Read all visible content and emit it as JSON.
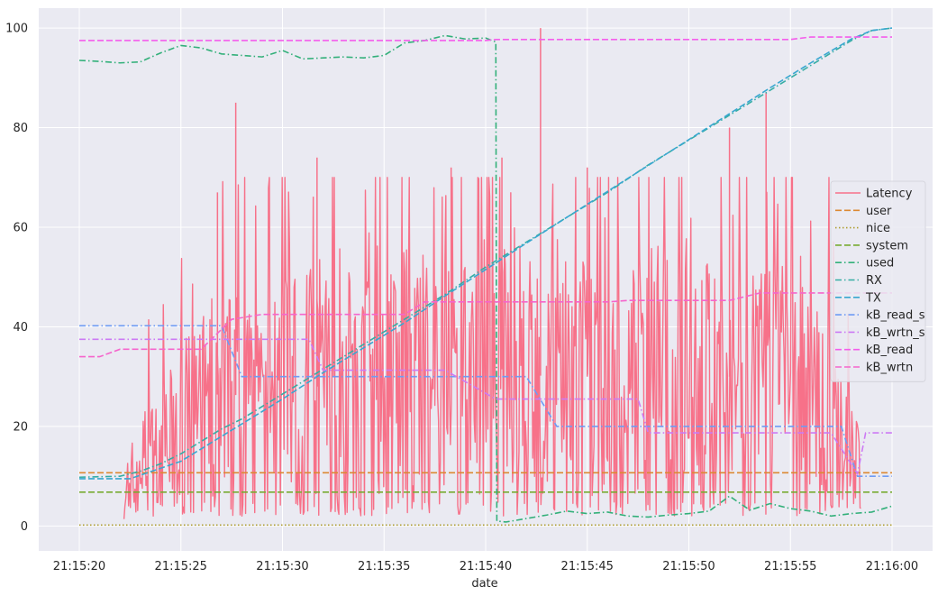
{
  "chart_data": {
    "type": "line",
    "title": "",
    "xlabel": "date",
    "ylabel": "",
    "x_range": [
      "21:15:20",
      "21:16:00"
    ],
    "ylim": [
      -5,
      104
    ],
    "grid": true,
    "legend_position": "right",
    "x_tick_labels": [
      "21:15:20",
      "21:15:25",
      "21:15:30",
      "21:15:35",
      "21:15:40",
      "21:15:45",
      "21:15:50",
      "21:15:55",
      "21:16:00"
    ],
    "y_tick_labels": [
      "0",
      "20",
      "40",
      "60",
      "80",
      "100"
    ],
    "series": [
      {
        "name": "Latency",
        "color": "#f77189",
        "dash": "solid",
        "note_style": "dense noisy bars",
        "points": [
          [
            "21:15:22.2",
            7
          ],
          [
            "21:15:23",
            13
          ],
          [
            "21:15:24",
            15
          ],
          [
            "21:15:25",
            20
          ],
          [
            "21:15:26",
            24
          ],
          [
            "21:15:27",
            27
          ],
          [
            "21:15:28",
            26
          ],
          [
            "21:15:30",
            28
          ],
          [
            "21:15:32",
            28
          ],
          [
            "21:15:35",
            28
          ],
          [
            "21:15:38",
            30
          ],
          [
            "21:15:40",
            32
          ],
          [
            "21:15:43",
            30
          ],
          [
            "21:15:46",
            30
          ],
          [
            "21:15:50",
            30
          ],
          [
            "21:15:54",
            30
          ],
          [
            "21:15:57",
            24
          ],
          [
            "21:15:58.5",
            10
          ]
        ],
        "peaks": [
          [
            "21:15:26.8",
            67
          ],
          [
            "21:15:27.7",
            85
          ],
          [
            "21:15:31.7",
            74
          ],
          [
            "21:15:38.3",
            72
          ],
          [
            "21:15:40.8",
            74
          ],
          [
            "21:15:42.7",
            100
          ],
          [
            "21:15:45",
            72
          ],
          [
            "21:15:52",
            80
          ],
          [
            "21:15:53.8",
            87
          ]
        ]
      },
      {
        "name": "user",
        "color": "#dc8932",
        "dash": "dashed",
        "points": [
          [
            "21:15:20",
            10.7
          ],
          [
            "21:16:00",
            10.7
          ]
        ]
      },
      {
        "name": "nice",
        "color": "#ae9d31",
        "dash": "dotted",
        "points": [
          [
            "21:15:20",
            0.2
          ],
          [
            "21:16:00",
            0.2
          ]
        ]
      },
      {
        "name": "system",
        "color": "#77ab31",
        "dash": "dashed",
        "points": [
          [
            "21:15:20",
            6.8
          ],
          [
            "21:16:00",
            6.8
          ]
        ]
      },
      {
        "name": "used",
        "color": "#33b07a",
        "dash": "dashdot",
        "points": [
          [
            "21:15:20",
            93.5
          ],
          [
            "21:15:21",
            93.3
          ],
          [
            "21:15:22",
            93
          ],
          [
            "21:15:23",
            93.2
          ],
          [
            "21:15:24",
            95
          ],
          [
            "21:15:25",
            96.5
          ],
          [
            "21:15:26",
            96
          ],
          [
            "21:15:27",
            94.8
          ],
          [
            "21:15:28",
            94.5
          ],
          [
            "21:15:29",
            94.2
          ],
          [
            "21:15:30",
            95.5
          ],
          [
            "21:15:31",
            93.8
          ],
          [
            "21:15:32",
            94
          ],
          [
            "21:15:33",
            94.2
          ],
          [
            "21:15:34",
            94
          ],
          [
            "21:15:35",
            94.5
          ],
          [
            "21:15:36",
            97
          ],
          [
            "21:15:37",
            97.5
          ],
          [
            "21:15:38",
            98.5
          ],
          [
            "21:15:39",
            97.8
          ],
          [
            "21:15:40",
            98
          ],
          [
            "21:15:40.5",
            97.2
          ],
          [
            "21:15:40.55",
            1
          ],
          [
            "21:15:41",
            0.8
          ],
          [
            "21:15:42",
            1.5
          ],
          [
            "21:15:43",
            2.2
          ],
          [
            "21:15:44",
            3
          ],
          [
            "21:15:45",
            2.5
          ],
          [
            "21:15:46",
            2.8
          ],
          [
            "21:15:47",
            2
          ],
          [
            "21:15:48",
            1.8
          ],
          [
            "21:15:49",
            2.2
          ],
          [
            "21:15:50",
            2.5
          ],
          [
            "21:15:51",
            3
          ],
          [
            "21:15:52",
            6
          ],
          [
            "21:15:53",
            3.2
          ],
          [
            "21:15:54",
            4.5
          ],
          [
            "21:15:55",
            3.5
          ],
          [
            "21:15:56",
            3
          ],
          [
            "21:15:57",
            2
          ],
          [
            "21:15:58",
            2.5
          ],
          [
            "21:15:59",
            2.8
          ],
          [
            "21:16:00",
            4
          ]
        ]
      },
      {
        "name": "RX",
        "color": "#36ada4",
        "dash": "dashdot",
        "points": [
          [
            "21:15:20",
            9.8
          ],
          [
            "21:15:22",
            10
          ],
          [
            "21:15:23",
            11
          ],
          [
            "21:15:24",
            12.5
          ],
          [
            "21:15:25",
            14.5
          ],
          [
            "21:15:26",
            17
          ],
          [
            "21:15:27",
            19.5
          ],
          [
            "21:15:28",
            21.5
          ],
          [
            "21:15:30",
            26.5
          ],
          [
            "21:15:32",
            31.5
          ],
          [
            "21:15:34",
            36.5
          ],
          [
            "21:15:36",
            41.5
          ],
          [
            "21:15:38",
            46.5
          ],
          [
            "21:15:40",
            52
          ],
          [
            "21:15:42",
            57
          ],
          [
            "21:15:44",
            62
          ],
          [
            "21:15:46",
            67
          ],
          [
            "21:15:48",
            72.5
          ],
          [
            "21:15:50",
            77.5
          ],
          [
            "21:15:52",
            82.5
          ],
          [
            "21:15:54",
            87.5
          ],
          [
            "21:15:56",
            92.5
          ],
          [
            "21:15:58",
            97.5
          ],
          [
            "21:15:59",
            99.5
          ],
          [
            "21:16:00",
            100
          ]
        ]
      },
      {
        "name": "TX",
        "color": "#39a7d0",
        "dash": "dashed",
        "points": [
          [
            "21:15:20",
            9.5
          ],
          [
            "21:15:22.5",
            9.5
          ],
          [
            "21:15:23",
            10.2
          ],
          [
            "21:15:25",
            13
          ],
          [
            "21:15:27",
            18
          ],
          [
            "21:15:28",
            20.5
          ],
          [
            "21:15:30",
            25.5
          ],
          [
            "21:15:32",
            30.8
          ],
          [
            "21:15:34",
            35.8
          ],
          [
            "21:15:36",
            40.8
          ],
          [
            "21:15:38",
            46.2
          ],
          [
            "21:15:40",
            51.5
          ],
          [
            "21:15:42",
            56.8
          ],
          [
            "21:15:44",
            62
          ],
          [
            "21:15:46",
            67.2
          ],
          [
            "21:15:48",
            72.4
          ],
          [
            "21:15:50",
            77.6
          ],
          [
            "21:15:52",
            82.8
          ],
          [
            "21:15:54",
            88
          ],
          [
            "21:15:56",
            93
          ],
          [
            "21:15:58",
            97.8
          ],
          [
            "21:15:59",
            99.5
          ],
          [
            "21:16:00",
            100
          ]
        ]
      },
      {
        "name": "kB_read_s",
        "color": "#6e9bf4",
        "dash": "dashdot",
        "points": [
          [
            "21:15:20",
            40.2
          ],
          [
            "21:15:27",
            40.2
          ],
          [
            "21:15:28",
            30
          ],
          [
            "21:15:40.5",
            30
          ],
          [
            "21:15:41",
            30
          ],
          [
            "21:15:42",
            30
          ],
          [
            "21:15:43.5",
            20
          ],
          [
            "21:15:57.5",
            20
          ],
          [
            "21:15:58.3",
            10
          ],
          [
            "21:16:00",
            10
          ]
        ]
      },
      {
        "name": "kB_wrtn_s",
        "color": "#cc7af4",
        "dash": "dashdot",
        "points": [
          [
            "21:15:20",
            37.5
          ],
          [
            "21:15:31.3",
            37.5
          ],
          [
            "21:15:32",
            31.3
          ],
          [
            "21:15:38",
            31.3
          ],
          [
            "21:15:40.5",
            25.5
          ],
          [
            "21:15:47.5",
            25.5
          ],
          [
            "21:15:48",
            18.7
          ],
          [
            "21:15:57",
            18.7
          ],
          [
            "21:15:58.3",
            10.5
          ],
          [
            "21:15:58.7",
            18.7
          ],
          [
            "21:16:00",
            18.7
          ]
        ]
      },
      {
        "name": "kB_read",
        "color": "#f45deb",
        "dash": "dashed",
        "points": [
          [
            "21:15:20",
            97.5
          ],
          [
            "21:15:40",
            97.5
          ],
          [
            "21:15:40.5",
            97.7
          ],
          [
            "21:15:55",
            97.7
          ],
          [
            "21:15:56",
            98.2
          ],
          [
            "21:16:00",
            98.2
          ]
        ]
      },
      {
        "name": "kB_wrtn",
        "color": "#f565cc",
        "dash": "dashed",
        "points": [
          [
            "21:15:20",
            34
          ],
          [
            "21:15:21",
            34
          ],
          [
            "21:15:22",
            35.5
          ],
          [
            "21:15:26",
            35.5
          ],
          [
            "21:15:27.5",
            41.5
          ],
          [
            "21:15:29",
            42.5
          ],
          [
            "21:15:36",
            42.5
          ],
          [
            "21:15:37",
            45
          ],
          [
            "21:15:46",
            45
          ],
          [
            "21:15:47",
            45.3
          ],
          [
            "21:15:52",
            45.3
          ],
          [
            "21:15:53.5",
            46.8
          ],
          [
            "21:16:00",
            46.8
          ]
        ]
      }
    ]
  }
}
